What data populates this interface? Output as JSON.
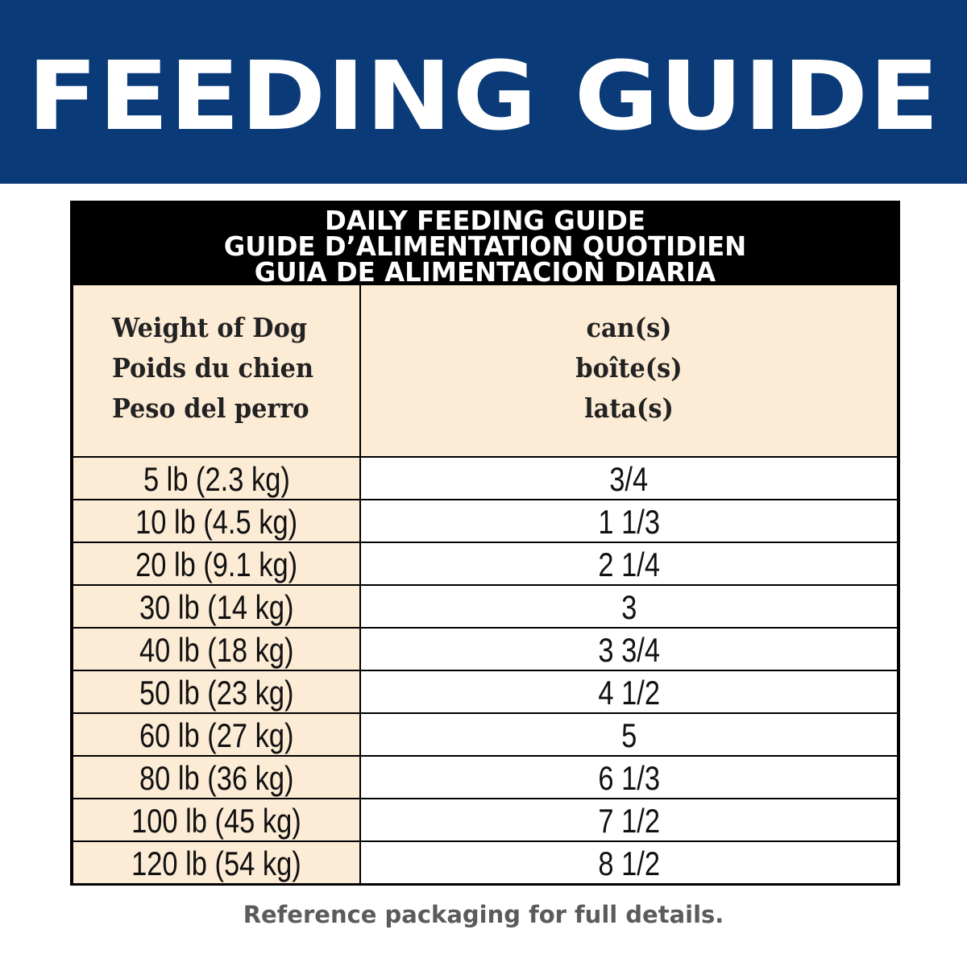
{
  "banner": {
    "title": "FEEDING GUIDE"
  },
  "guide": {
    "header_lines": [
      "DAILY FEEDING GUIDE",
      "GUIDE D’ALIMENTATION QUOTIDIEN",
      "GUIA DE ALIMENTACION DIARIA"
    ],
    "weight_header_lines": [
      "Weight of Dog",
      "Poids du chien",
      "Peso del perro"
    ],
    "amount_header_lines": [
      "can(s)",
      "boîte(s)",
      "lata(s)"
    ],
    "rows": [
      {
        "weight": "5 lb (2.3 kg)",
        "amount": "3/4"
      },
      {
        "weight": "10 lb (4.5 kg)",
        "amount": "1 1/3"
      },
      {
        "weight": "20 lb (9.1 kg)",
        "amount": "2 1/4"
      },
      {
        "weight": "30 lb (14 kg)",
        "amount": "3"
      },
      {
        "weight": "40 lb (18 kg)",
        "amount": "3 3/4"
      },
      {
        "weight": "50 lb (23 kg)",
        "amount": "4 1/2"
      },
      {
        "weight": "60 lb (27 kg)",
        "amount": "5"
      },
      {
        "weight": "80 lb (36 kg)",
        "amount": "6 1/3"
      },
      {
        "weight": "100 lb (45 kg)",
        "amount": "7 1/2"
      },
      {
        "weight": "120 lb (54 kg)",
        "amount": "8 1/2"
      }
    ]
  },
  "footer": {
    "note": "Reference packaging for full details."
  },
  "colors": {
    "banner": "#0b3a78",
    "cream": "#fcebd5",
    "border": "#000000",
    "footer_text": "#5b5b5b"
  }
}
